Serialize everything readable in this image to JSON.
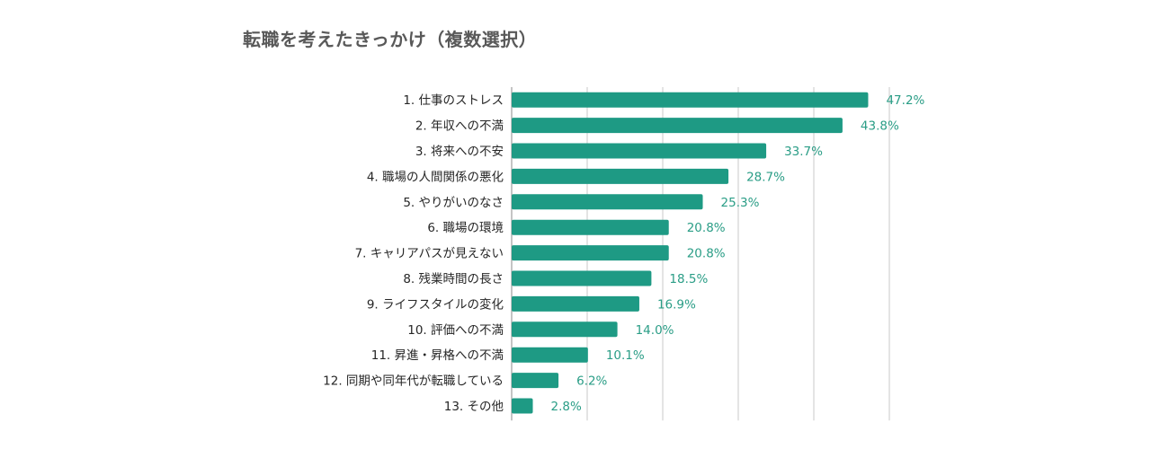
{
  "chart_data": {
    "type": "bar",
    "orientation": "horizontal",
    "title": "転職を考えたきっかけ（複数選択）",
    "categories": [
      "1. 仕事のストレス",
      "2. 年収への不満",
      "3. 将来への不安",
      "4. 職場の人間関係の悪化",
      "5. やりがいのなさ",
      "6. 職場の環境",
      "7. キャリアパスが見えない",
      "8. 残業時間の長さ",
      "9. ライフスタイルの変化",
      "10. 評価への不満",
      "11. 昇進・昇格への不満",
      "12. 同期や同年代が転職している",
      "13. その他"
    ],
    "values": [
      47.2,
      43.8,
      33.7,
      28.7,
      25.3,
      20.8,
      20.8,
      18.5,
      16.9,
      14.0,
      10.1,
      6.2,
      2.8
    ],
    "value_labels": [
      "47.2%",
      "43.8%",
      "33.7%",
      "28.7%",
      "25.3%",
      "20.8%",
      "20.8%",
      "18.5%",
      "16.9%",
      "14.0%",
      "10.1%",
      "6.2%",
      "2.8%"
    ],
    "xlim": [
      0,
      50
    ],
    "xticks": [
      0,
      10,
      20,
      30,
      40,
      50
    ],
    "grid": true,
    "xlabel": "",
    "ylabel": "",
    "colors": {
      "bar": "#1e9a84",
      "value_label": "#2a9d86",
      "grid": "#c8c8c8",
      "axis": "#9e9e9e",
      "category_label": "#262626",
      "title": "#595959"
    }
  }
}
